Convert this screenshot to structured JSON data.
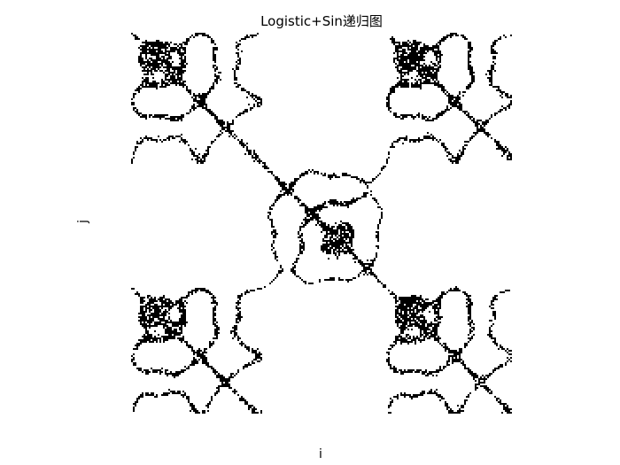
{
  "chart_data": {
    "type": "heatmap",
    "title": "Logistic+Sin递归图",
    "xlabel": "i",
    "ylabel": "j",
    "colors": {
      "recurrent": "#000000",
      "background": "#ffffff"
    },
    "grid": false,
    "axes_visible": false
  }
}
